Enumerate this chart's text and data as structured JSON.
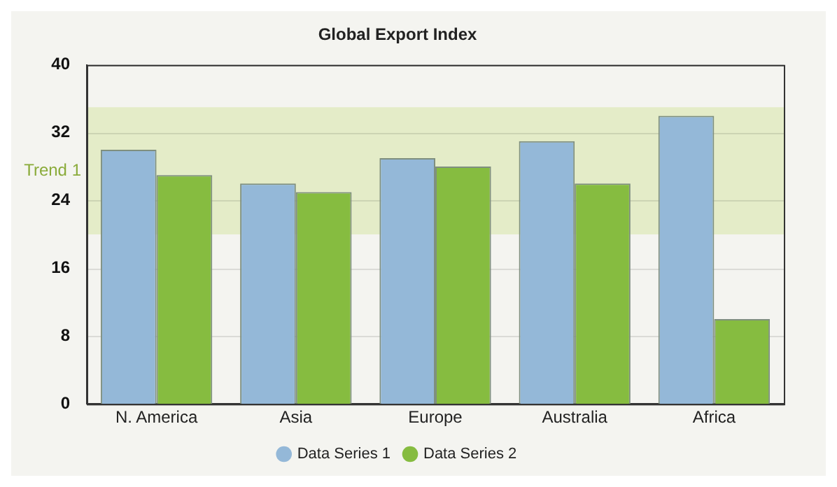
{
  "chart_data": {
    "type": "bar",
    "title": "Global Export Index",
    "categories": [
      "N. America",
      "Asia",
      "Europe",
      "Australia",
      "Africa"
    ],
    "series": [
      {
        "name": "Data Series 1",
        "color": "#94b8d8",
        "values": [
          30,
          26,
          29,
          31,
          34
        ]
      },
      {
        "name": "Data Series 2",
        "color": "#86bc40",
        "values": [
          27,
          25,
          28,
          26,
          10
        ]
      }
    ],
    "ylim": [
      0,
      40
    ],
    "yticks": [
      0,
      8,
      16,
      24,
      32,
      40
    ],
    "grid": "y",
    "legend": "bottom",
    "bands": [
      {
        "axis": "y",
        "from": 20,
        "to": 35,
        "label": "Trend 1",
        "color": "#e4ecc8"
      }
    ]
  }
}
